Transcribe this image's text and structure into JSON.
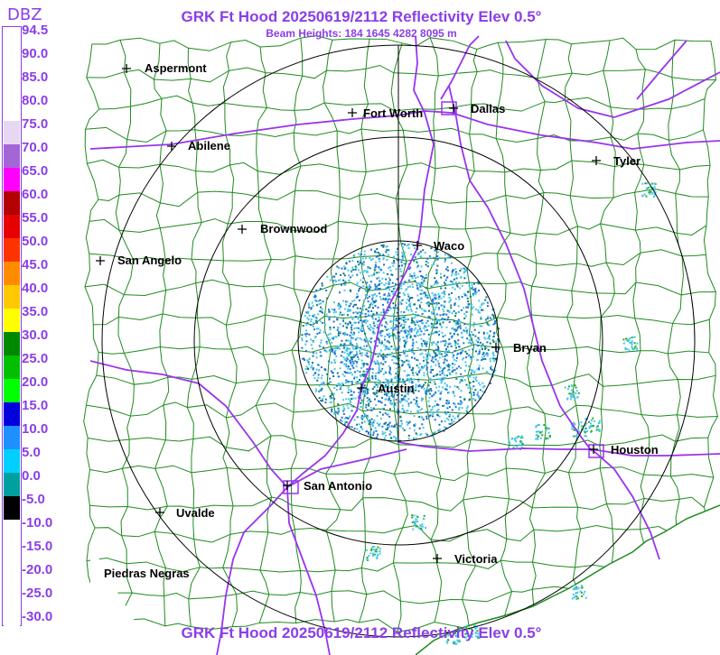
{
  "header": {
    "title": "GRK Ft Hood 20250619/2112 Reflectivity Elev 0.5°",
    "subtitle": "Beam Heights: 184 1645 4282 8095 m",
    "footer_title": "GRK Ft Hood 20250619/2112 Reflectivity Elev 0.5°"
  },
  "legend": {
    "title": "DBZ",
    "levels": [
      {
        "label": "94.5",
        "color": "#ffffff"
      },
      {
        "label": "90.0",
        "color": "#ffffff"
      },
      {
        "label": "85.0",
        "color": "#ffffff"
      },
      {
        "label": "80.0",
        "color": "#ffffff"
      },
      {
        "label": "75.0",
        "color": "#e6d8f2"
      },
      {
        "label": "70.0",
        "color": "#a366d6"
      },
      {
        "label": "65.0",
        "color": "#ff00ff"
      },
      {
        "label": "60.0",
        "color": "#b30000"
      },
      {
        "label": "55.0",
        "color": "#e60000"
      },
      {
        "label": "50.0",
        "color": "#ff3300"
      },
      {
        "label": "45.0",
        "color": "#ff8c00"
      },
      {
        "label": "40.0",
        "color": "#ffc800"
      },
      {
        "label": "35.0",
        "color": "#ffff00"
      },
      {
        "label": "30.0",
        "color": "#008800"
      },
      {
        "label": "25.0",
        "color": "#00c000"
      },
      {
        "label": "20.0",
        "color": "#00ff00"
      },
      {
        "label": "15.0",
        "color": "#0000dd"
      },
      {
        "label": "10.0",
        "color": "#1e90ff"
      },
      {
        "label": "5.0",
        "color": "#00d0ff"
      },
      {
        "label": "0.0",
        "color": "#00a0a0"
      },
      {
        "label": "-5.0",
        "color": "#000000"
      },
      {
        "label": "-10.0",
        "color": "#ffffff"
      },
      {
        "label": "-15.0",
        "color": "#ffffff"
      },
      {
        "label": "-20.0",
        "color": "#ffffff"
      },
      {
        "label": "-25.0",
        "color": "#ffffff"
      },
      {
        "label": "-30.0",
        "color": "#ffffff"
      }
    ]
  },
  "map": {
    "colors": {
      "county_lines": "#1f8a1f",
      "highways": "#9933ee",
      "range_rings": "#000000",
      "echo_light": "#49c6e8",
      "echo_mid": "#1e6fd6",
      "echo_dark": "#0a7a6a",
      "echo_strong": "#22aa22"
    },
    "cities": [
      {
        "name": "Aspermont",
        "icon": "plus-marker"
      },
      {
        "name": "Fort Worth",
        "icon": "plus-marker"
      },
      {
        "name": "Dallas",
        "icon": "plus-marker"
      },
      {
        "name": "Abilene",
        "icon": "plus-marker"
      },
      {
        "name": "Tyler",
        "icon": "plus-marker"
      },
      {
        "name": "Brownwood",
        "icon": "plus-marker"
      },
      {
        "name": "Waco",
        "icon": "plus-marker"
      },
      {
        "name": "San Angelo",
        "icon": "plus-marker"
      },
      {
        "name": "Bryan",
        "icon": "plus-marker"
      },
      {
        "name": "Austin",
        "icon": "plus-marker"
      },
      {
        "name": "Houston",
        "icon": "plus-marker"
      },
      {
        "name": "San Antonio",
        "icon": "plus-marker"
      },
      {
        "name": "Uvalde",
        "icon": "plus-marker"
      },
      {
        "name": "Victoria",
        "icon": "plus-marker"
      },
      {
        "name": "Piedras Negras",
        "icon": "none"
      }
    ]
  }
}
